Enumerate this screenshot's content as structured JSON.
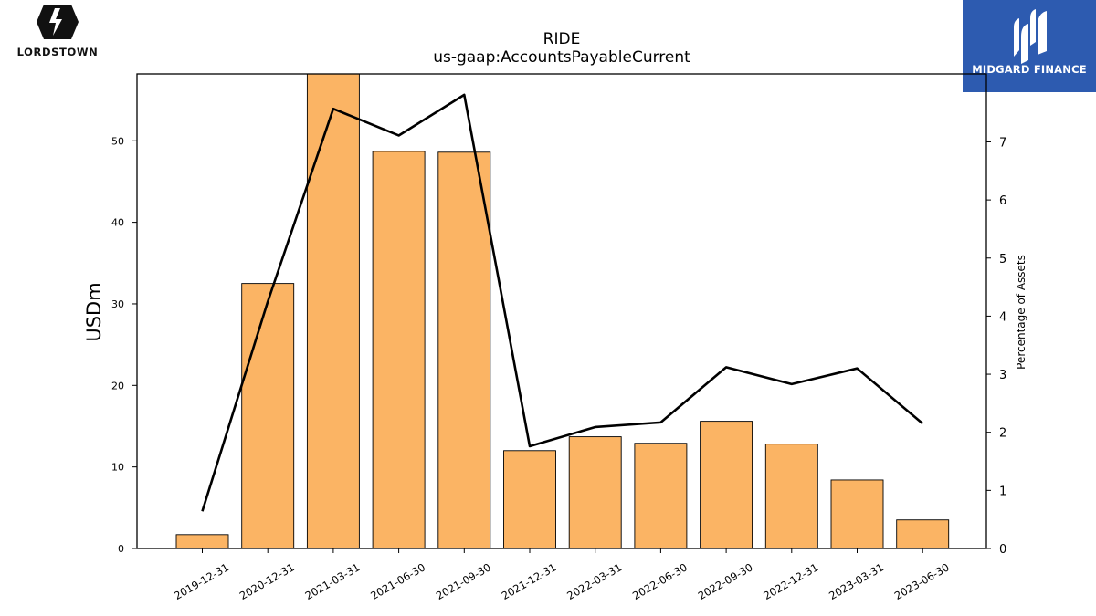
{
  "branding": {
    "left_logo_text": "LORDSTOWN",
    "right_logo_text": "MIDGARD FINANCE",
    "right_logo_bg": "#2d5bb0"
  },
  "chart_data": {
    "type": "bar",
    "title": "RIDE",
    "subtitle": "us-gaap:AccountsPayableCurrent",
    "ylabel": "USDm",
    "y2label": "Percentage of Assets",
    "categories": [
      "2019-12-31",
      "2020-12-31",
      "2021-03-31",
      "2021-06-30",
      "2021-09-30",
      "2021-12-31",
      "2022-03-31",
      "2022-06-30",
      "2022-09-30",
      "2022-12-31",
      "2023-03-31",
      "2023-06-30"
    ],
    "series": [
      {
        "axis": "left",
        "type": "bar",
        "color": "#fbb464",
        "values": [
          1.7,
          32.5,
          58.5,
          48.7,
          48.6,
          12.0,
          13.7,
          12.9,
          15.6,
          12.8,
          8.4,
          3.5
        ]
      },
      {
        "axis": "right",
        "type": "line",
        "color": "#000000",
        "values": [
          0.64,
          4.25,
          7.57,
          7.11,
          7.81,
          1.76,
          2.09,
          2.17,
          3.12,
          2.83,
          3.1,
          2.15
        ]
      }
    ],
    "ylim": [
      0,
      58.2
    ],
    "y2lim": [
      0,
      8.17
    ],
    "yticks": [
      0,
      10,
      20,
      30,
      40,
      50
    ],
    "y2ticks": [
      0,
      1,
      2,
      3,
      4,
      5,
      6,
      7
    ],
    "grid": false
  }
}
